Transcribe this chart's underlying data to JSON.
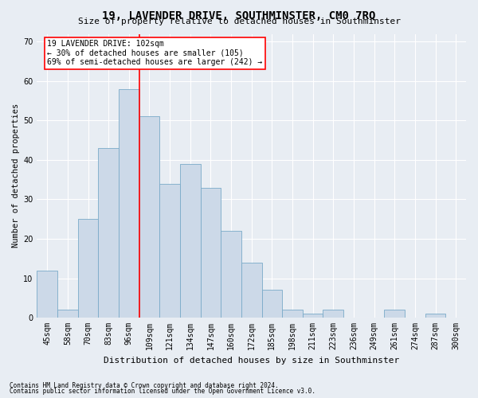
{
  "title": "19, LAVENDER DRIVE, SOUTHMINSTER, CM0 7RQ",
  "subtitle": "Size of property relative to detached houses in Southminster",
  "xlabel": "Distribution of detached houses by size in Southminster",
  "ylabel": "Number of detached properties",
  "footnote1": "Contains HM Land Registry data © Crown copyright and database right 2024.",
  "footnote2": "Contains public sector information licensed under the Open Government Licence v3.0.",
  "bar_labels": [
    "45sqm",
    "58sqm",
    "70sqm",
    "83sqm",
    "96sqm",
    "109sqm",
    "121sqm",
    "134sqm",
    "147sqm",
    "160sqm",
    "172sqm",
    "185sqm",
    "198sqm",
    "211sqm",
    "223sqm",
    "236sqm",
    "249sqm",
    "261sqm",
    "274sqm",
    "287sqm",
    "300sqm"
  ],
  "bar_heights": [
    12,
    2,
    25,
    43,
    58,
    51,
    34,
    39,
    33,
    22,
    14,
    7,
    2,
    1,
    2,
    0,
    0,
    2,
    0,
    1,
    0
  ],
  "bar_color": "#ccd9e8",
  "bar_edge_color": "#7aaac8",
  "vline_x": 4.5,
  "vline_color": "red",
  "ylim": [
    0,
    72
  ],
  "yticks": [
    0,
    10,
    20,
    30,
    40,
    50,
    60,
    70
  ],
  "annotation_text": "19 LAVENDER DRIVE: 102sqm\n← 30% of detached houses are smaller (105)\n69% of semi-detached houses are larger (242) →",
  "annotation_box_color": "white",
  "annotation_box_edge_color": "red",
  "background_color": "#e8edf3",
  "plot_bg_color": "#e8edf3",
  "title_fontsize": 10,
  "subtitle_fontsize": 8,
  "ylabel_fontsize": 7.5,
  "xlabel_fontsize": 8,
  "tick_fontsize": 7,
  "annotation_fontsize": 7,
  "footnote_fontsize": 5.5
}
